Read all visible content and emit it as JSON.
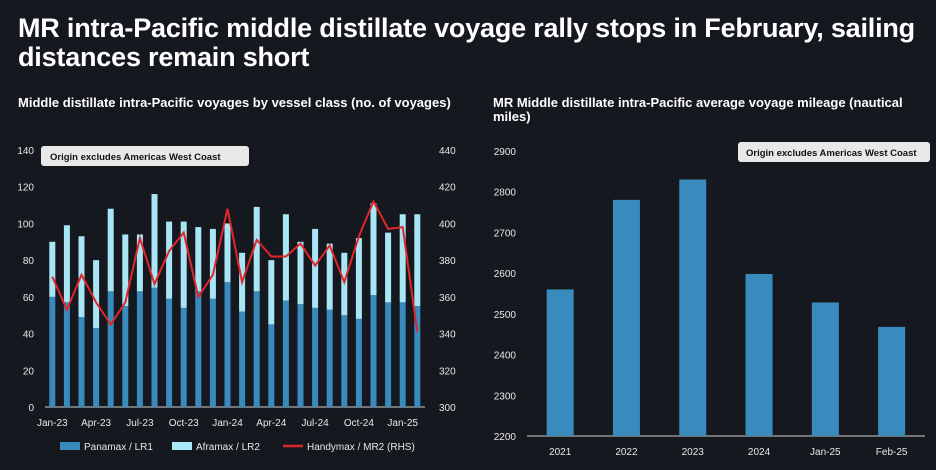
{
  "headline": "MR intra-Pacific middle distillate voyage rally stops in February, sailing distances remain short",
  "colors": {
    "background": "#15181e",
    "panamax": "#3a8bbd",
    "aframax": "#a9e6f5",
    "handymax": "#e0262b",
    "mileage_bar": "#3a8bbd",
    "note_bg": "#e8e8e8"
  },
  "left_chart": {
    "title": "Middle distillate intra-Pacific voyages by vessel class (no. of voyages)",
    "note": "Origin excludes Americas West Coast",
    "y_ticks": [
      "0",
      "20",
      "40",
      "60",
      "80",
      "100",
      "120",
      "140"
    ],
    "y2_ticks": [
      "300",
      "320",
      "340",
      "360",
      "380",
      "400",
      "420",
      "440"
    ],
    "x_ticks": [
      "Jan-23",
      "Apr-23",
      "Jul-23",
      "Oct-23",
      "Jan-24",
      "Apr-24",
      "Jul-24",
      "Oct-24",
      "Jan-25"
    ],
    "legend": [
      "Panamax / LR1",
      "Aframax / LR2",
      "Handymax / MR2 (RHS)"
    ]
  },
  "right_chart": {
    "title": "MR Middle distillate intra-Pacific average voyage mileage (nautical miles)",
    "note": "Origin excludes Americas West Coast",
    "y_ticks": [
      "2200",
      "2300",
      "2400",
      "2500",
      "2600",
      "2700",
      "2800",
      "2900"
    ]
  },
  "chart_data": [
    {
      "type": "bar",
      "title": "Middle distillate intra-Pacific voyages by vessel class (no. of voyages)",
      "ylim": [
        0,
        140
      ],
      "y2lim": [
        300,
        440
      ],
      "categories": [
        "Jan-23",
        "Feb-23",
        "Mar-23",
        "Apr-23",
        "May-23",
        "Jun-23",
        "Jul-23",
        "Aug-23",
        "Sep-23",
        "Oct-23",
        "Nov-23",
        "Dec-23",
        "Jan-24",
        "Feb-24",
        "Mar-24",
        "Apr-24",
        "May-24",
        "Jun-24",
        "Jul-24",
        "Aug-24",
        "Sep-24",
        "Oct-24",
        "Nov-24",
        "Dec-24",
        "Jan-25",
        "Feb-25"
      ],
      "series": [
        {
          "name": "Panamax / LR1",
          "kind": "stacked-bar",
          "values": [
            60,
            57,
            49,
            43,
            63,
            55,
            63,
            65,
            59,
            54,
            63,
            59,
            68,
            52,
            63,
            45,
            58,
            56,
            54,
            53,
            50,
            48,
            61,
            57,
            57,
            55
          ]
        },
        {
          "name": "Aframax / LR2",
          "kind": "stacked-bar",
          "values": [
            30,
            42,
            44,
            37,
            45,
            39,
            31,
            51,
            42,
            47,
            35,
            38,
            32,
            32,
            46,
            35,
            47,
            34,
            43,
            36,
            34,
            44,
            50,
            38,
            48,
            50
          ]
        },
        {
          "name": "Handymax / MR2 (RHS)",
          "kind": "line",
          "axis": "right",
          "values": [
            371,
            353,
            372,
            357,
            345,
            357,
            392,
            367,
            385,
            395,
            360,
            372,
            408,
            368,
            391,
            382,
            382,
            389,
            377,
            388,
            368,
            393,
            412,
            397,
            398,
            341
          ]
        }
      ]
    },
    {
      "type": "bar",
      "title": "MR Middle distillate intra-Pacific average voyage mileage (nautical miles)",
      "ylim": [
        2200,
        2900
      ],
      "categories": [
        "2021",
        "2022",
        "2023",
        "2024",
        "Jan-25",
        "Feb-25"
      ],
      "values": [
        2560,
        2780,
        2830,
        2598,
        2528,
        2468
      ]
    }
  ]
}
